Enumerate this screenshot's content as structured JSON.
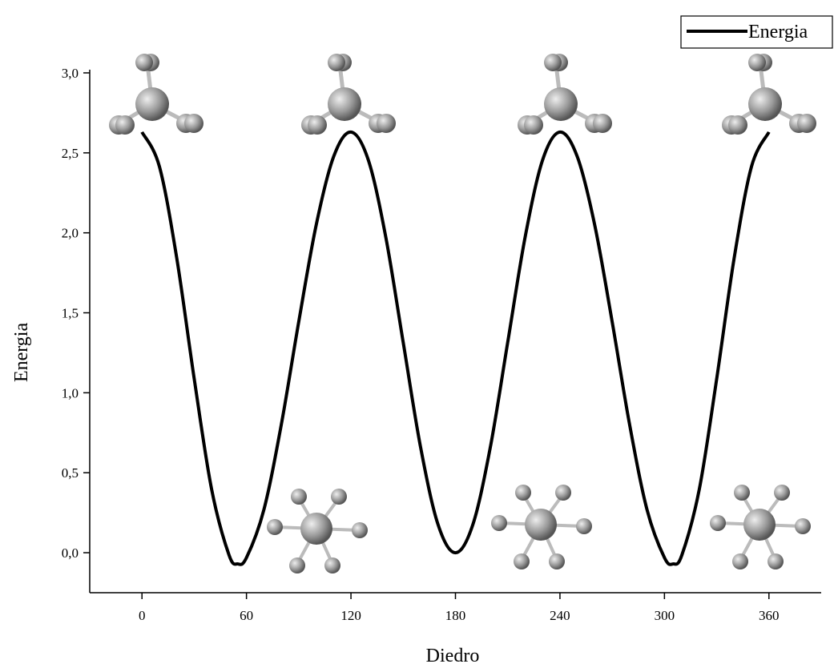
{
  "chart_data": {
    "type": "line",
    "xlabel": "Diedro",
    "ylabel": "Energia",
    "x": [
      0,
      10,
      20,
      30,
      40,
      50,
      55,
      60,
      70,
      80,
      90,
      100,
      110,
      120,
      130,
      140,
      150,
      160,
      170,
      180,
      190,
      200,
      210,
      220,
      230,
      240,
      250,
      260,
      270,
      280,
      290,
      300,
      305,
      310,
      320,
      330,
      340,
      350,
      360
    ],
    "series": [
      {
        "name": "Energia",
        "color": "#000000",
        "values": [
          2.63,
          2.415,
          1.84,
          1.087,
          0.396,
          -0.015,
          -0.07,
          -0.031,
          0.269,
          0.801,
          1.443,
          2.047,
          2.475,
          2.63,
          2.454,
          1.973,
          1.315,
          0.658,
          0.176,
          0,
          0.176,
          0.658,
          1.315,
          1.973,
          2.454,
          2.63,
          2.475,
          2.047,
          1.443,
          0.801,
          0.269,
          -0.031,
          -0.07,
          -0.015,
          0.396,
          1.087,
          1.84,
          2.415,
          2.63
        ]
      }
    ],
    "xlim": [
      -30,
      390
    ],
    "ylim": [
      -0.25,
      3.02
    ],
    "xticks": [
      0,
      60,
      120,
      180,
      240,
      300,
      360
    ],
    "yticks": [
      {
        "value": 0,
        "label": "0,0"
      },
      {
        "value": 0.5,
        "label": "0,5"
      },
      {
        "value": 1,
        "label": "1,0"
      },
      {
        "value": 1.5,
        "label": "1,5"
      },
      {
        "value": 2,
        "label": "2,0"
      },
      {
        "value": 2.5,
        "label": "2,5"
      },
      {
        "value": 3,
        "label": "3,0"
      }
    ],
    "grid": false,
    "legend": "upper right"
  }
}
